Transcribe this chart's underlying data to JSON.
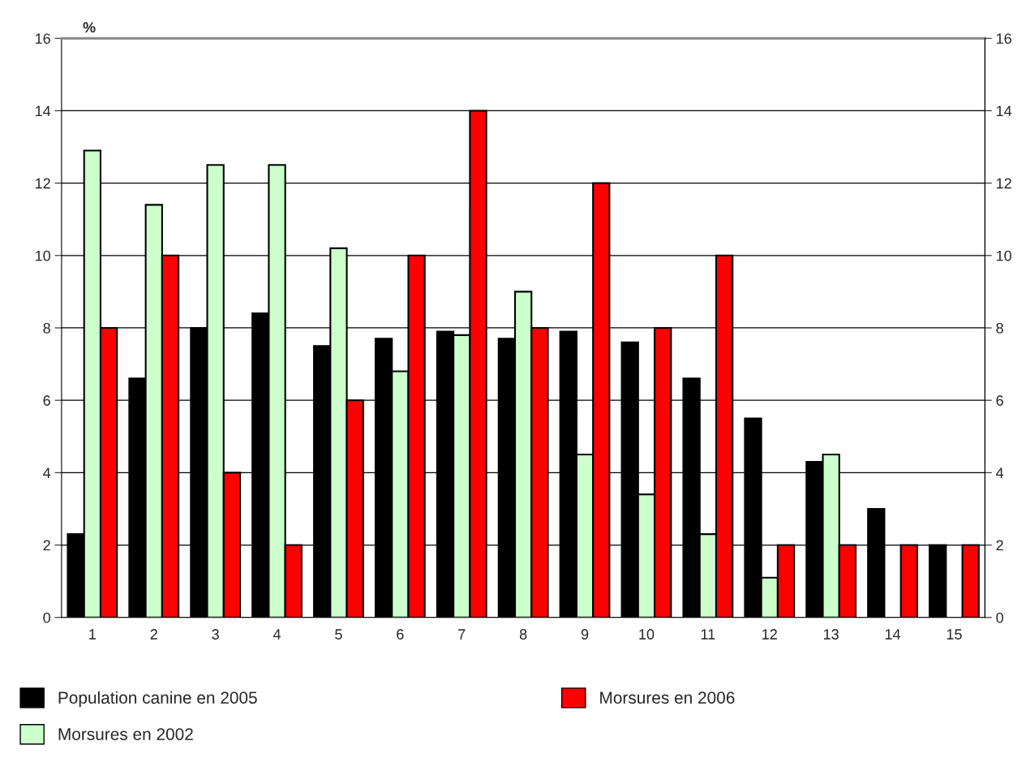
{
  "chart_data": {
    "type": "bar",
    "ylabel": "%",
    "categories": [
      "1",
      "2",
      "3",
      "4",
      "5",
      "6",
      "7",
      "8",
      "9",
      "10",
      "11",
      "12",
      "13",
      "14",
      "15"
    ],
    "series": [
      {
        "name": "Population canine en 2005",
        "color": "#000000",
        "values": [
          2.3,
          6.6,
          8.0,
          8.4,
          7.5,
          7.7,
          7.9,
          7.7,
          7.9,
          7.6,
          6.6,
          5.5,
          4.3,
          3.0,
          2.0
        ]
      },
      {
        "name": "Morsures en 2002",
        "color": "#ccffcc",
        "values": [
          12.9,
          11.4,
          12.5,
          12.5,
          10.2,
          6.8,
          7.8,
          9.0,
          4.5,
          3.4,
          2.3,
          1.1,
          4.5,
          null,
          null
        ]
      },
      {
        "name": "Morsures en 2006",
        "color": "#ff0000",
        "values": [
          8,
          10,
          4,
          2,
          6,
          10,
          14,
          8,
          12,
          8,
          10,
          2,
          2,
          2,
          2
        ]
      }
    ],
    "ylim": [
      0,
      16
    ],
    "yticks": [
      0,
      2,
      4,
      6,
      8,
      10,
      12,
      14,
      16
    ],
    "y2lim": [
      0,
      16
    ],
    "y2ticks": [
      0,
      2,
      4,
      6,
      8,
      10,
      12,
      14,
      16
    ],
    "grid": "y",
    "legend": "bottom"
  }
}
